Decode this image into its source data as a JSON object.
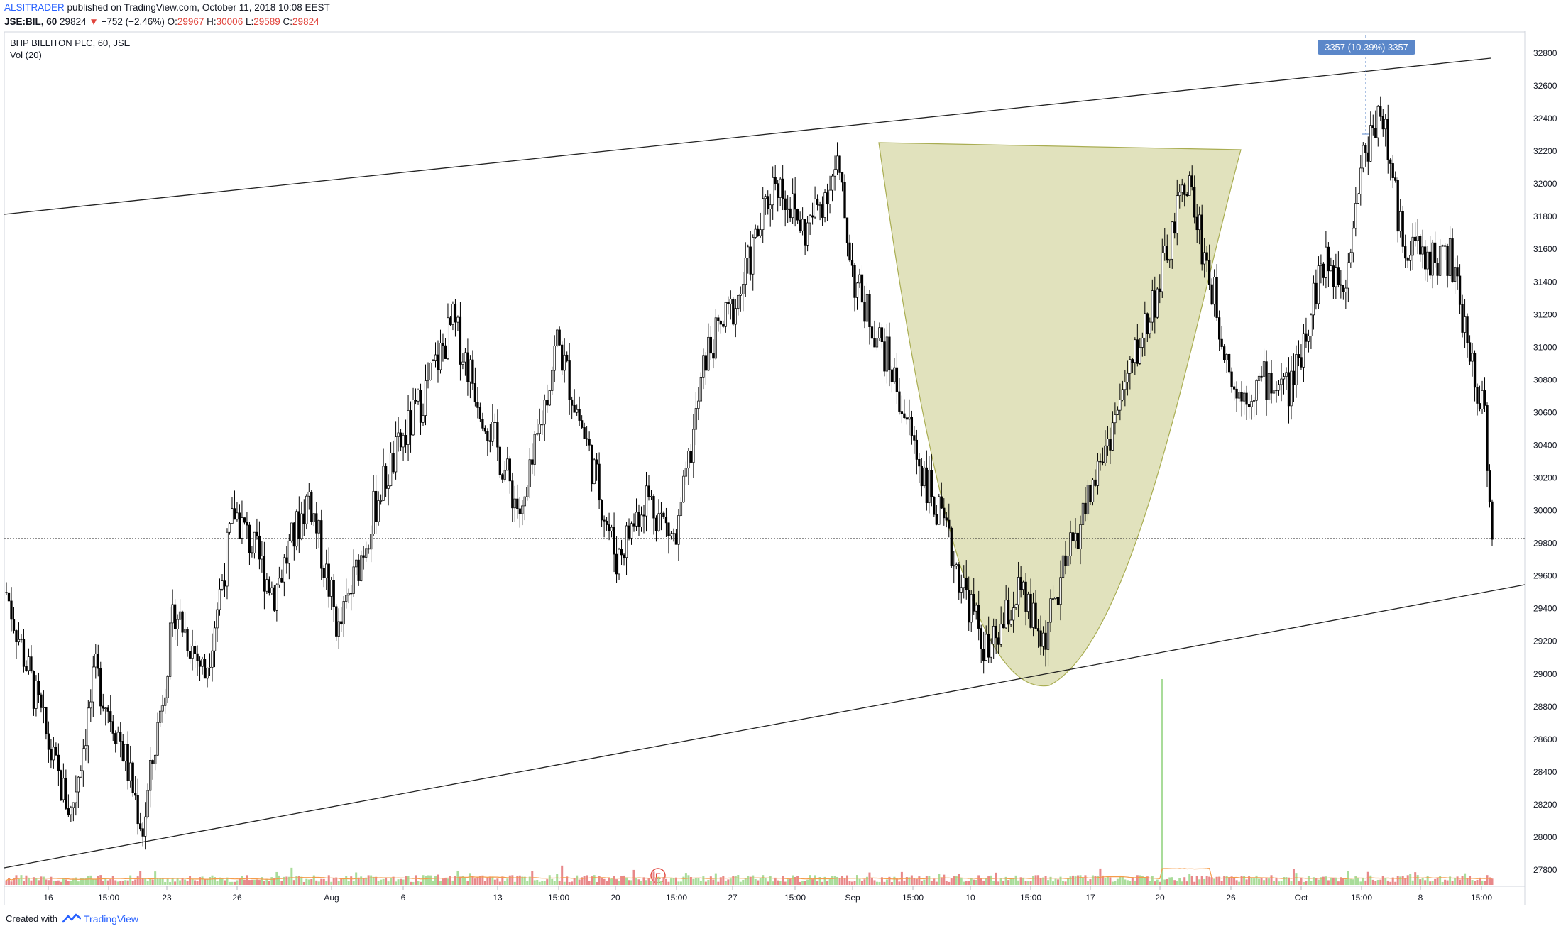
{
  "header": {
    "author": "ALSITRADER",
    "published": "published on TradingView.com, October 11, 2018 10:08 EEST",
    "symbol": "JSE:BIL, 60",
    "last": "29824",
    "change": "−752 (−2.46%)",
    "open_label": "O:",
    "open": "29967",
    "high_label": "H:",
    "high": "30006",
    "low_label": "L:",
    "low": "29589",
    "close_label": "C:",
    "close": "29824"
  },
  "legend": {
    "title": "BHP BILLITON PLC, 60, JSE",
    "volume": "Vol (20)"
  },
  "measure_label": "3357 (10.39%) 3357",
  "event_marker": "E",
  "footer": {
    "created_with": "Created with",
    "brand": "TradingView"
  },
  "colors": {
    "candle": "#000000",
    "volume_up": "#a9dc9a",
    "volume_down": "#e8888a",
    "volume_ma": "#f59c4a",
    "cup_fill": "#c8cb86",
    "measure_tag": "#5b87c9",
    "grid_text": "#131722"
  },
  "chart_data": {
    "type": "candlestick",
    "title": "BHP BILLITON PLC, 60, JSE",
    "y_axis": {
      "ticks": [
        27800,
        28000,
        28200,
        28400,
        28600,
        28800,
        29000,
        29200,
        29400,
        29600,
        29800,
        30000,
        30200,
        30400,
        30600,
        30800,
        31000,
        31200,
        31400,
        31600,
        31800,
        32000,
        32200,
        32400,
        32600,
        32800
      ],
      "range": [
        27700,
        32900
      ]
    },
    "x_axis": {
      "ticks": [
        "16",
        "15:00",
        "23",
        "26",
        "Aug",
        "6",
        "13",
        "15:00",
        "20",
        "15:00",
        "27",
        "15:00",
        "Sep",
        "15:00",
        "10",
        "15:00",
        "17",
        "20",
        "26",
        "Oct",
        "15:00",
        "8",
        "15:00"
      ]
    },
    "current_price": 29824,
    "price_path": [
      {
        "idx": 0,
        "price": 29500
      },
      {
        "idx": 20,
        "price": 28400
      },
      {
        "idx": 26,
        "price": 28150
      },
      {
        "idx": 36,
        "price": 29000
      },
      {
        "idx": 46,
        "price": 28600
      },
      {
        "idx": 55,
        "price": 28050
      },
      {
        "idx": 68,
        "price": 29400
      },
      {
        "idx": 80,
        "price": 29000
      },
      {
        "idx": 92,
        "price": 30000
      },
      {
        "idx": 108,
        "price": 29500
      },
      {
        "idx": 122,
        "price": 30100
      },
      {
        "idx": 134,
        "price": 29250
      },
      {
        "idx": 150,
        "price": 30100
      },
      {
        "idx": 168,
        "price": 30700
      },
      {
        "idx": 180,
        "price": 31150
      },
      {
        "idx": 195,
        "price": 30500
      },
      {
        "idx": 208,
        "price": 29950
      },
      {
        "idx": 222,
        "price": 31050
      },
      {
        "idx": 235,
        "price": 30350
      },
      {
        "idx": 246,
        "price": 29700
      },
      {
        "idx": 258,
        "price": 30100
      },
      {
        "idx": 270,
        "price": 29800
      },
      {
        "idx": 282,
        "price": 30950
      },
      {
        "idx": 295,
        "price": 31300
      },
      {
        "idx": 310,
        "price": 32050
      },
      {
        "idx": 322,
        "price": 31700
      },
      {
        "idx": 335,
        "price": 32100
      },
      {
        "idx": 342,
        "price": 31400
      },
      {
        "idx": 356,
        "price": 30900
      },
      {
        "idx": 368,
        "price": 30300
      },
      {
        "idx": 382,
        "price": 29700
      },
      {
        "idx": 396,
        "price": 29100
      },
      {
        "idx": 408,
        "price": 29500
      },
      {
        "idx": 418,
        "price": 29200
      },
      {
        "idx": 428,
        "price": 29700
      },
      {
        "idx": 440,
        "price": 30250
      },
      {
        "idx": 452,
        "price": 30800
      },
      {
        "idx": 466,
        "price": 31450
      },
      {
        "idx": 476,
        "price": 32050
      },
      {
        "idx": 484,
        "price": 31500
      },
      {
        "idx": 496,
        "price": 30700
      },
      {
        "idx": 508,
        "price": 30800
      },
      {
        "idx": 518,
        "price": 30750
      },
      {
        "idx": 530,
        "price": 31500
      },
      {
        "idx": 540,
        "price": 31450
      },
      {
        "idx": 546,
        "price": 32100
      },
      {
        "idx": 554,
        "price": 32500
      },
      {
        "idx": 562,
        "price": 31700
      },
      {
        "idx": 572,
        "price": 31550
      },
      {
        "idx": 582,
        "price": 31550
      },
      {
        "idx": 590,
        "price": 30950
      },
      {
        "idx": 596,
        "price": 30600
      },
      {
        "idx": 599,
        "price": 29824
      }
    ]
  }
}
